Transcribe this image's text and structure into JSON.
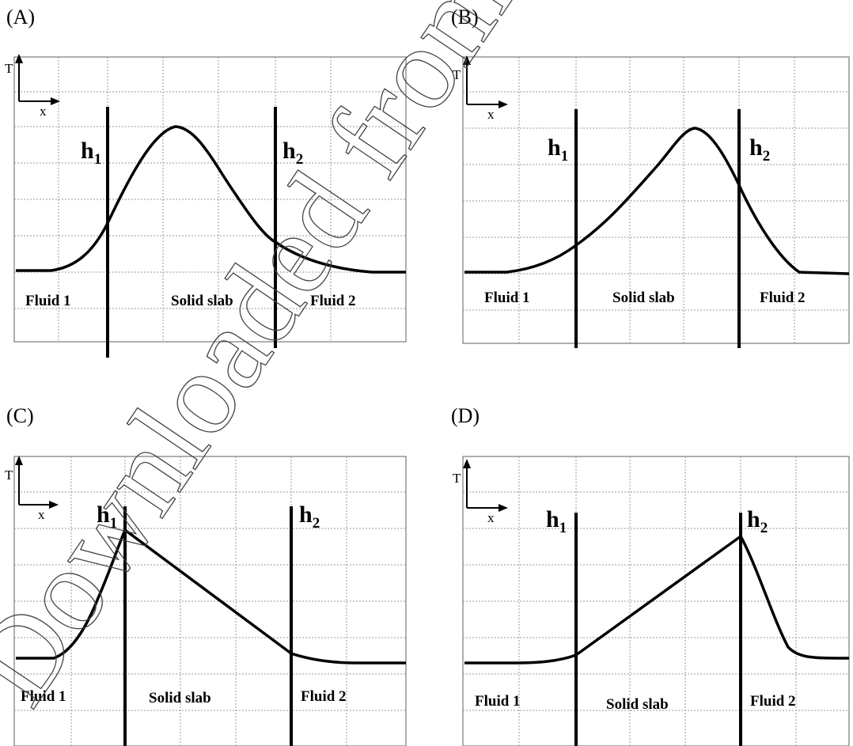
{
  "axis_labels": {
    "y": "T",
    "x": "x"
  },
  "interface_labels": {
    "h1_main": "h",
    "h1_sub": "1",
    "h2_main": "h",
    "h2_sub": "2"
  },
  "regions": {
    "fluid1": "Fluid 1",
    "solid": "Solid slab",
    "fluid2": "Fluid 2"
  },
  "watermark": "Downloaded from www.te",
  "panels": [
    {
      "id": "A",
      "label": "(A)"
    },
    {
      "id": "B",
      "label": "(B)"
    },
    {
      "id": "C",
      "label": "(C)"
    },
    {
      "id": "D",
      "label": "(D)"
    }
  ]
}
